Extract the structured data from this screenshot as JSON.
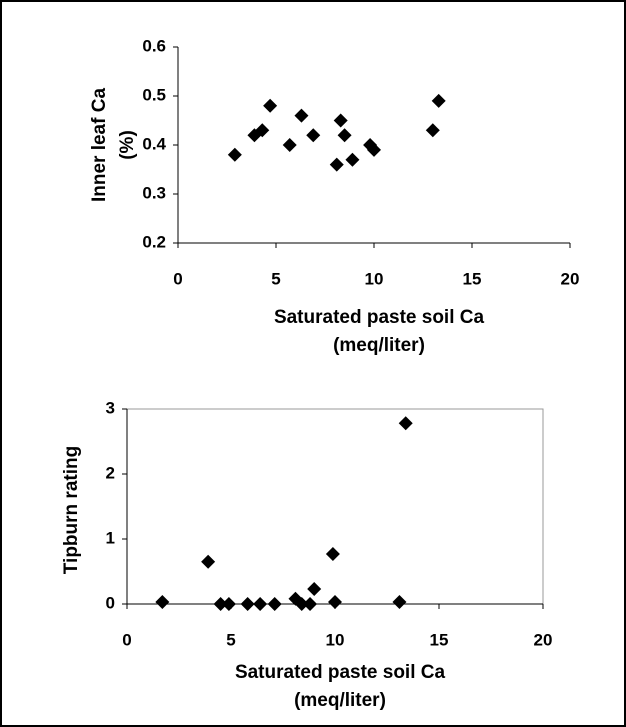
{
  "chart_data": [
    {
      "type": "scatter",
      "x_label": [
        "Saturated paste soil Ca",
        "(meq/liter)"
      ],
      "y_label": [
        "Inner leaf Ca",
        "(%)"
      ],
      "x": [
        2.9,
        3.9,
        4.3,
        4.7,
        5.7,
        6.3,
        6.9,
        8.1,
        8.3,
        8.5,
        8.9,
        9.8,
        10.0,
        13.0,
        13.3
      ],
      "values": [
        0.38,
        0.42,
        0.43,
        0.48,
        0.4,
        0.46,
        0.42,
        0.36,
        0.45,
        0.42,
        0.37,
        0.4,
        0.39,
        0.43,
        0.49
      ],
      "color": "#000000",
      "xlim": [
        0,
        20
      ],
      "xticks": [
        0,
        5,
        10,
        15,
        20
      ],
      "ylim": [
        0.2,
        0.6
      ],
      "yticks": [
        0.2,
        0.3,
        0.4,
        0.5,
        0.6
      ]
    },
    {
      "type": "scatter",
      "x_label": [
        "Saturated paste soil Ca",
        "(meq/liter)"
      ],
      "y_label": [
        "Tipburn rating"
      ],
      "x": [
        1.7,
        3.9,
        4.5,
        4.9,
        5.8,
        6.4,
        7.1,
        8.1,
        8.4,
        8.8,
        9.0,
        9.9,
        10.0,
        13.1,
        13.4
      ],
      "values": [
        0.03,
        0.65,
        0,
        0,
        0,
        0,
        0,
        0.08,
        0,
        0,
        0.23,
        0.77,
        0.03,
        0.03,
        2.78
      ],
      "color": "#000000",
      "xlim": [
        0,
        20
      ],
      "xticks": [
        0,
        5,
        10,
        15,
        20
      ],
      "ylim": [
        0,
        3
      ],
      "yticks": [
        0,
        1,
        2,
        3
      ]
    }
  ]
}
